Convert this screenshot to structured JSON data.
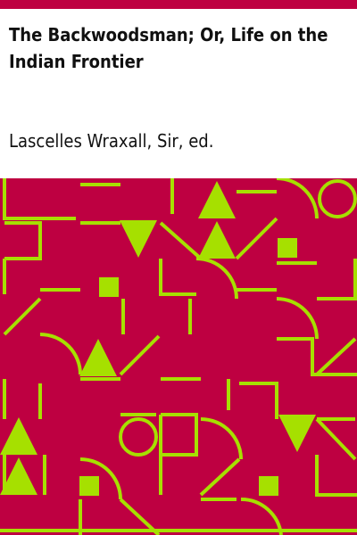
{
  "book": {
    "title": "The Backwoodsman; Or, Life on the Indian Frontier",
    "author": "Lascelles Wraxall, Sir, ed."
  },
  "colors": {
    "stripe": "#be0041",
    "background": "#be0041",
    "pattern": "#a6e000",
    "text": "#101010"
  }
}
